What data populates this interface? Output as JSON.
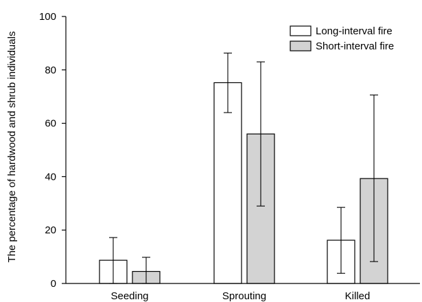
{
  "chart_data": {
    "type": "bar",
    "title": "",
    "xlabel": "",
    "ylabel": "The percentage of hardwood and shrub individuals",
    "ylim": [
      0,
      100
    ],
    "yticks": [
      0,
      20,
      40,
      60,
      80,
      100
    ],
    "categories": [
      "Seeding",
      "Sprouting",
      "Killed"
    ],
    "series": [
      {
        "name": "Long-interval fire",
        "color": "#ffffff",
        "values": [
          8.7,
          75.2,
          16.2
        ],
        "error_low": [
          0,
          64,
          3.8
        ],
        "error_high": [
          17.2,
          86.3,
          28.5
        ]
      },
      {
        "name": "Short-interval fire",
        "color": "#d3d3d3",
        "values": [
          4.5,
          56.0,
          39.3
        ],
        "error_low": [
          0,
          29,
          8.2
        ],
        "error_high": [
          9.8,
          83.0,
          70.6
        ]
      }
    ],
    "legend_position": "top-right",
    "grid": false
  }
}
